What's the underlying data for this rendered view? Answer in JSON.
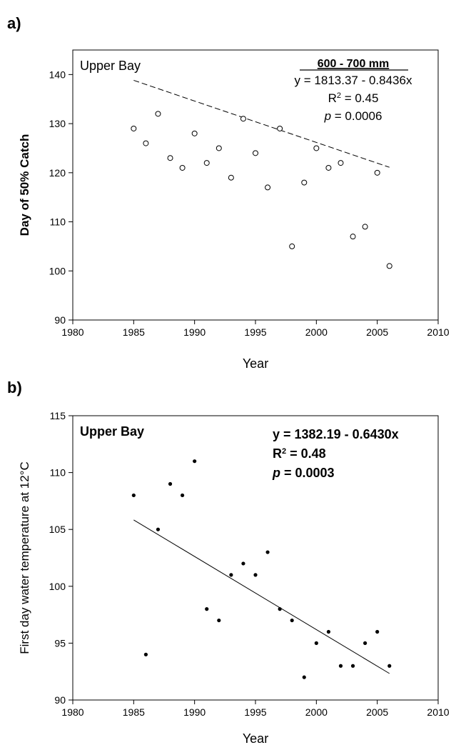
{
  "panels": [
    {
      "label": "a)"
    },
    {
      "label": "b)"
    }
  ],
  "chart_data": [
    {
      "type": "scatter",
      "title": "",
      "xlabel": "Year",
      "ylabel": "Day of 50% Catch",
      "xlim": [
        1980,
        2010
      ],
      "ylim": [
        90,
        145
      ],
      "xticks": [
        1980,
        1985,
        1990,
        1995,
        2000,
        2005,
        2010
      ],
      "yticks": [
        90,
        100,
        110,
        120,
        130,
        140
      ],
      "grid": false,
      "annotation_left": "Upper Bay",
      "annotation_heading": "600 - 700 mm",
      "equation": "y = 1813.37 - 0.8436x",
      "r2_label": "R",
      "r2_sup": "2",
      "r2_value": " = 0.45",
      "p_label": "p",
      "p_value": " = 0.0006",
      "marker": "open-circle",
      "trendline": {
        "style": "dashed",
        "intercept": 1813.37,
        "slope": -0.8436,
        "x_range": [
          1985,
          2006
        ]
      },
      "series": [
        {
          "x": [
            1985,
            1986,
            1987,
            1988,
            1989,
            1990,
            1991,
            1992,
            1993,
            1994,
            1995,
            1996,
            1997,
            1998,
            1999,
            2000,
            2001,
            2002,
            2003,
            2004,
            2005,
            2006
          ],
          "y": [
            129,
            126,
            132,
            123,
            121,
            128,
            122,
            125,
            119,
            131,
            124,
            117,
            129,
            105,
            118,
            125,
            121,
            122,
            107,
            109,
            120,
            101
          ]
        }
      ]
    },
    {
      "type": "scatter",
      "title": "",
      "xlabel": "Year",
      "ylabel": "First day water temperature at 12°C",
      "xlim": [
        1980,
        2010
      ],
      "ylim": [
        90,
        115
      ],
      "xticks": [
        1980,
        1985,
        1990,
        1995,
        2000,
        2005,
        2010
      ],
      "yticks": [
        90,
        95,
        100,
        105,
        110,
        115
      ],
      "grid": false,
      "annotation_left": "Upper Bay",
      "equation": "y = 1382.19 - 0.6430x",
      "r2_label": "R",
      "r2_sup": "2",
      "r2_value": " = 0.48",
      "p_label": "p",
      "p_value": " = 0.0003",
      "marker": "filled-dot",
      "trendline": {
        "style": "solid",
        "intercept": 1382.19,
        "slope": -0.643,
        "x_range": [
          1985,
          2006
        ]
      },
      "series": [
        {
          "x": [
            1985,
            1986,
            1987,
            1988,
            1989,
            1990,
            1991,
            1992,
            1993,
            1994,
            1995,
            1996,
            1997,
            1998,
            1999,
            2000,
            2001,
            2002,
            2003,
            2004,
            2005,
            2006
          ],
          "y": [
            108,
            94,
            105,
            109,
            108,
            111,
            98,
            97,
            101,
            102,
            101,
            103,
            98,
            97,
            92,
            95,
            96,
            93,
            93,
            95,
            96,
            93
          ]
        }
      ]
    }
  ]
}
